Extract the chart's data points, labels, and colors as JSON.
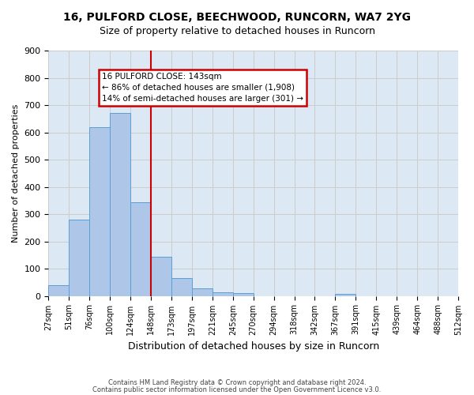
{
  "title_line1": "16, PULFORD CLOSE, BEECHWOOD, RUNCORN, WA7 2YG",
  "title_line2": "Size of property relative to detached houses in Runcorn",
  "xlabel": "Distribution of detached houses by size in Runcorn",
  "ylabel": "Number of detached properties",
  "bin_labels": [
    "27sqm",
    "51sqm",
    "76sqm",
    "100sqm",
    "124sqm",
    "148sqm",
    "173sqm",
    "197sqm",
    "221sqm",
    "245sqm",
    "270sqm",
    "294sqm",
    "318sqm",
    "342sqm",
    "367sqm",
    "391sqm",
    "415sqm",
    "439sqm",
    "464sqm",
    "488sqm",
    "512sqm"
  ],
  "bar_values": [
    40,
    280,
    620,
    670,
    345,
    145,
    65,
    27,
    12,
    10,
    0,
    0,
    0,
    0,
    8,
    0,
    0,
    0,
    0,
    0
  ],
  "bar_color": "#aec6e8",
  "bar_edge_color": "#5a9fd4",
  "annotation_text_line1": "16 PULFORD CLOSE: 143sqm",
  "annotation_text_line2": "← 86% of detached houses are smaller (1,908)",
  "annotation_text_line3": "14% of semi-detached houses are larger (301) →",
  "annotation_box_color": "#ffffff",
  "annotation_border_color": "#cc0000",
  "vline_color": "#cc0000",
  "ylim": [
    0,
    900
  ],
  "yticks": [
    0,
    100,
    200,
    300,
    400,
    500,
    600,
    700,
    800,
    900
  ],
  "grid_color": "#cccccc",
  "background_color": "#dce9f5",
  "footer_line1": "Contains HM Land Registry data © Crown copyright and database right 2024.",
  "footer_line2": "Contains public sector information licensed under the Open Government Licence v3.0."
}
